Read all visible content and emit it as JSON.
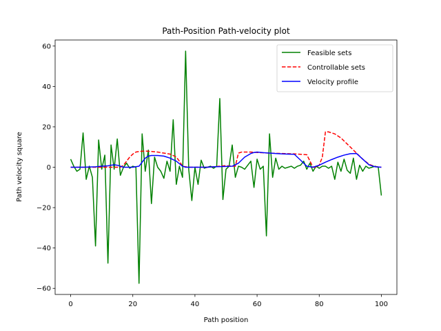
{
  "chart_data": {
    "type": "line",
    "title": "Path-Position Path-velocity plot",
    "xlabel": "Path position",
    "ylabel": "Path velocity square",
    "xlim": [
      -5,
      105
    ],
    "ylim": [
      -63,
      63
    ],
    "xticks": [
      0,
      20,
      40,
      60,
      80,
      100
    ],
    "yticks": [
      -60,
      -40,
      -20,
      0,
      20,
      40,
      60
    ],
    "grid": false,
    "legend_position": "top-right",
    "series": [
      {
        "name": "Feasible sets",
        "style": "solid",
        "color": "#008000",
        "x": [
          0,
          1,
          2,
          3,
          4,
          5,
          6,
          7,
          8,
          9,
          10,
          11,
          12,
          13,
          14,
          15,
          16,
          17,
          18,
          19,
          20,
          21,
          22,
          23,
          24,
          25,
          26,
          27,
          28,
          29,
          30,
          31,
          32,
          33,
          34,
          35,
          36,
          37,
          38,
          39,
          40,
          41,
          42,
          43,
          44,
          45,
          46,
          47,
          48,
          49,
          50,
          51,
          52,
          53,
          54,
          55,
          56,
          57,
          58,
          59,
          60,
          61,
          62,
          63,
          64,
          65,
          66,
          67,
          68,
          69,
          70,
          71,
          72,
          73,
          74,
          75,
          76,
          77,
          78,
          79,
          80,
          81,
          82,
          83,
          84,
          85,
          86,
          87,
          88,
          89,
          90,
          91,
          92,
          93,
          94,
          95,
          96,
          97,
          98,
          99,
          100
        ],
        "y": [
          4,
          0.5,
          -2,
          -1,
          17,
          -6,
          0.5,
          -5,
          -39,
          13.5,
          -1,
          6,
          -47.5,
          11,
          -1,
          14,
          -4,
          0,
          2,
          -0.5,
          0.5,
          0,
          -57.5,
          16.5,
          -2,
          8.5,
          -18,
          5,
          0,
          -2,
          -5.5,
          3,
          -2,
          23.5,
          -8.5,
          0.5,
          -5,
          57.5,
          -1,
          -16.5,
          0,
          -8.5,
          3.5,
          -0.5,
          0,
          0.5,
          -0.5,
          0.5,
          34,
          -16,
          -1,
          0.5,
          11,
          -5,
          0.5,
          0,
          -1,
          1,
          3,
          -10,
          4,
          -1,
          0.5,
          -34,
          16.5,
          -5,
          4.5,
          -1,
          0.5,
          -0.5,
          0,
          0.5,
          -0.5,
          0.5,
          1,
          3,
          -1,
          2,
          -2,
          0.5,
          -0.5,
          0.5,
          0.5,
          -0.5,
          0.5,
          -6,
          2.5,
          -2,
          4,
          -1.5,
          -3,
          4.5,
          -6,
          1,
          -2,
          0.5,
          -0.5,
          0,
          0.5,
          0,
          -14
        ]
      },
      {
        "name": "Controllable sets",
        "style": "dashed",
        "color": "#ff0000",
        "x": [
          0,
          4,
          8,
          12,
          14,
          16,
          18,
          20,
          22,
          24,
          26,
          28,
          30,
          32,
          34,
          36,
          38,
          40,
          44,
          48,
          50,
          52,
          53,
          54,
          55,
          56,
          57,
          58,
          60,
          64,
          68,
          72,
          76,
          78,
          79,
          80,
          81,
          82,
          83,
          84,
          85,
          86,
          87,
          88,
          89,
          90,
          92,
          94,
          96,
          98,
          100
        ],
        "y": [
          0,
          0,
          0,
          0,
          0,
          0,
          0,
          0,
          0,
          0,
          0,
          0,
          0,
          0,
          0,
          0,
          0,
          0,
          0,
          0,
          0,
          0,
          0,
          0,
          0,
          0,
          0,
          0,
          0,
          0,
          0,
          0,
          0,
          0,
          0,
          0,
          0,
          0,
          0,
          0,
          0,
          0,
          0,
          0,
          0,
          0,
          0,
          0,
          0,
          0,
          0
        ]
      },
      {
        "name": "Velocity profile",
        "style": "solid",
        "color": "#0000ff",
        "x": [
          0,
          4,
          8,
          10,
          12,
          13,
          14,
          15,
          16,
          17,
          18,
          20,
          22,
          23,
          24,
          25,
          26,
          28,
          30,
          32,
          34,
          36,
          37,
          38,
          39,
          40,
          42,
          44,
          46,
          48,
          50,
          52,
          54,
          56,
          58,
          59,
          60,
          62,
          64,
          66,
          68,
          70,
          72,
          74,
          76,
          78,
          80,
          82,
          84,
          86,
          88,
          90,
          92,
          94,
          96,
          98,
          100
        ],
        "y": [
          0,
          0,
          0.2,
          0.5,
          0.7,
          1,
          1.2,
          1.0,
          0.5,
          0,
          0,
          0,
          0.5,
          2.5,
          4.5,
          5.5,
          5.8,
          5.8,
          5.5,
          4.5,
          3,
          0.5,
          0,
          0,
          0,
          0,
          0,
          0,
          0.2,
          0.3,
          0.4,
          0.5,
          2,
          5,
          6.8,
          7.3,
          7.5,
          7.2,
          7.0,
          6.8,
          6.6,
          6.5,
          6.4,
          3.5,
          0.5,
          0,
          1,
          2.5,
          3.8,
          5,
          6,
          6.7,
          6.8,
          4,
          1.2,
          0.2,
          0
        ]
      }
    ],
    "controllable_override": {
      "x": [
        0,
        4,
        8,
        12,
        14,
        15,
        16,
        17,
        18,
        19,
        20,
        21,
        22,
        24,
        26,
        28,
        30,
        32,
        33,
        34,
        35,
        36,
        38,
        40,
        44,
        48,
        50,
        52,
        53,
        54,
        55,
        56,
        57,
        58,
        60,
        64,
        68,
        72,
        76,
        78,
        79,
        80,
        81,
        82,
        83,
        84,
        85,
        86,
        87,
        88,
        89,
        90,
        92,
        94,
        96,
        98,
        100
      ],
      "y": [
        0,
        0,
        0,
        0,
        0,
        0,
        0,
        1,
        3,
        5,
        6.5,
        7.5,
        7.8,
        8,
        7.8,
        7.5,
        7,
        6.5,
        5.8,
        5,
        3,
        0.5,
        0,
        0,
        0,
        0.5,
        0.8,
        0.5,
        0.5,
        7,
        7.5,
        7.5,
        7.5,
        7.5,
        7.3,
        7,
        6.8,
        6.6,
        6.2,
        0,
        0,
        1,
        5,
        17.5,
        17.5,
        17,
        16.5,
        15.5,
        14.5,
        13,
        11.5,
        10,
        7,
        4,
        1.5,
        0.3,
        0
      ]
    }
  }
}
